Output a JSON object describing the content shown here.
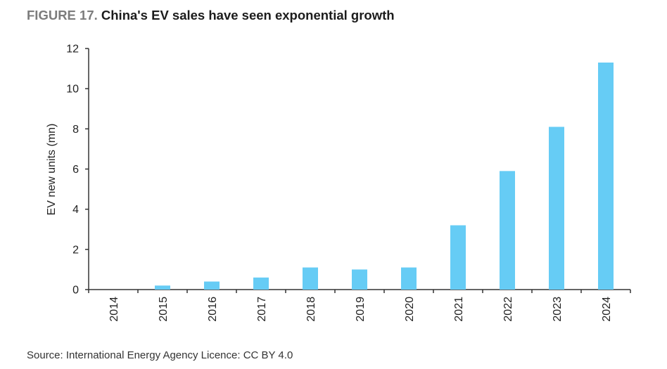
{
  "figure": {
    "number_label": "FIGURE 17.",
    "title": "China's EV sales have seen exponential growth"
  },
  "source": "Source: International Energy Agency Licence: CC BY 4.0",
  "colors": {
    "bar": "#66CCF5",
    "axis": "#333333"
  },
  "chart_data": {
    "type": "bar",
    "title": "China's EV sales have seen exponential growth",
    "xlabel": "",
    "ylabel": "EV new units (mn)",
    "categories": [
      "2014",
      "2015",
      "2016",
      "2017",
      "2018",
      "2019",
      "2020",
      "2021",
      "2022",
      "2023",
      "2024"
    ],
    "values": [
      0.0,
      0.2,
      0.4,
      0.6,
      1.1,
      1.0,
      1.1,
      3.2,
      5.9,
      8.1,
      11.3
    ],
    "ylim": [
      0,
      12
    ],
    "yticks": [
      0,
      2,
      4,
      6,
      8,
      10,
      12
    ],
    "grid": false,
    "legend": "none"
  }
}
